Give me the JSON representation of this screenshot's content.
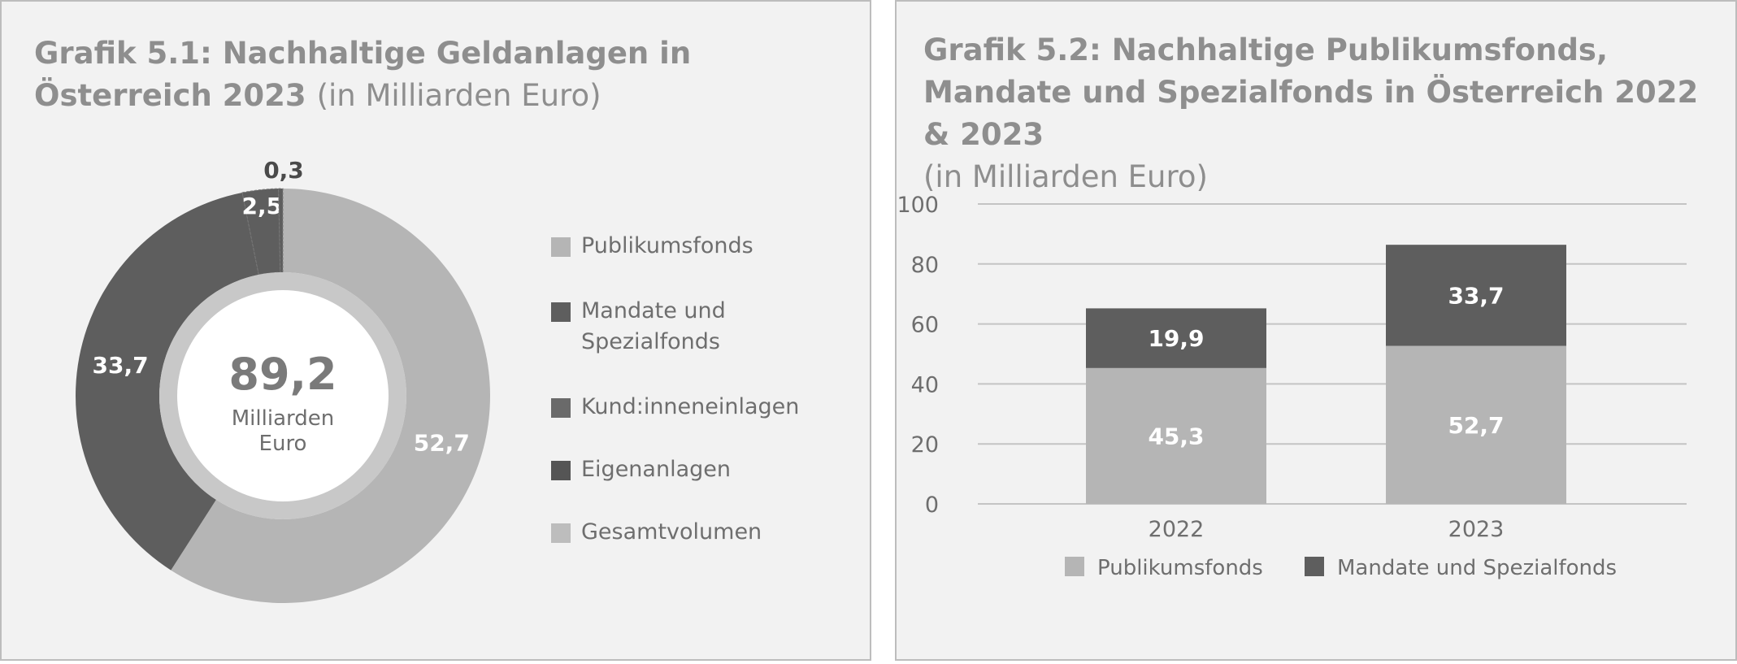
{
  "charts": [
    {
      "title_bold": "Grafik 5.1: Nachhaltige Geldanlagen in Österreich 2023",
      "title_sub": "(in Milliarden Euro)"
    },
    {
      "title_bold": "Grafik 5.2: Nachhaltige Publikumsfonds, Mandate und Spezialfonds in Österreich 2022 & 2023",
      "title_sub": "(in Milliarden Euro)"
    }
  ],
  "colors": {
    "light": "#b5b5b5",
    "dark": "#5e5e5e",
    "mid": "#7a7a7a",
    "center_ring": "#c8c8c8",
    "grid": "#c4c4c4"
  },
  "chart_data": [
    {
      "type": "pie",
      "title": "Grafik 5.1: Nachhaltige Geldanlagen in Österreich 2023 (in Milliarden Euro)",
      "center_value": "89,2",
      "center_label_1": "Milliarden",
      "center_label_2": "Euro",
      "slices": [
        {
          "name": "Publikumsfonds",
          "value": 52.7,
          "label": "52,7"
        },
        {
          "name": "Mandate und Spezialfonds",
          "value": 33.7,
          "label": "33,7"
        },
        {
          "name": "Kund:inneneinlagen",
          "value": 2.5,
          "label": "2,5"
        },
        {
          "name": "Eigenanlagen",
          "value": 0.3,
          "label": "0,3"
        }
      ],
      "legend": [
        {
          "lines": [
            "Publikumsfonds"
          ],
          "color": "#b5b5b5"
        },
        {
          "lines": [
            "Mandate und",
            "Spezialfonds"
          ],
          "color": "#5e5e5e"
        },
        {
          "lines": [
            "Kund:inneneinlagen"
          ],
          "color": "#6a6a6a"
        },
        {
          "lines": [
            "Eigenanlagen"
          ],
          "color": "#555555"
        },
        {
          "lines": [
            "Gesamtvolumen"
          ],
          "color": "#bdbdbd"
        }
      ],
      "legend_position": "right"
    },
    {
      "type": "bar",
      "stacked": true,
      "title": "Grafik 5.2: Nachhaltige Publikumsfonds, Mandate und Spezialfonds in Österreich 2022 & 2023 (in Milliarden Euro)",
      "categories": [
        "2022",
        "2023"
      ],
      "series": [
        {
          "name": "Publikumsfonds",
          "values": [
            45.3,
            52.7
          ],
          "labels": [
            "45,3",
            "52,7"
          ],
          "color": "#b5b5b5"
        },
        {
          "name": "Mandate und Spezialfonds",
          "values": [
            19.9,
            33.7
          ],
          "labels": [
            "19,9",
            "33,7"
          ],
          "color": "#5e5e5e"
        }
      ],
      "ylim": [
        0,
        100
      ],
      "yticks": [
        "0",
        "20",
        "40",
        "60",
        "80",
        "100"
      ],
      "grid": true,
      "legend_position": "bottom"
    }
  ]
}
